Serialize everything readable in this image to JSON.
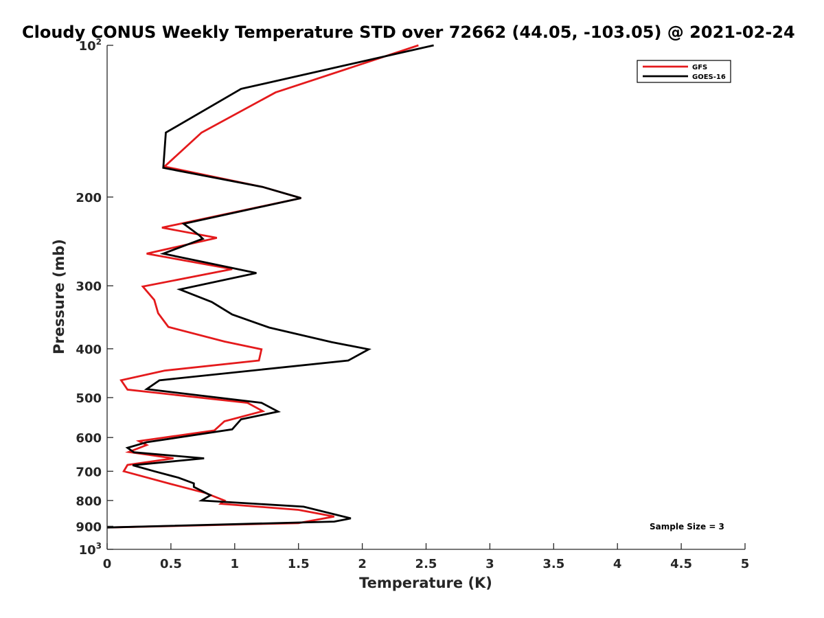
{
  "chart_data": {
    "type": "line",
    "title": "Cloudy CONUS Weekly Temperature STD over 72662 (44.05, -103.05) @ 2021-02-24",
    "xlabel": "Temperature (K)",
    "ylabel": "Pressure (mb)",
    "xlim": [
      0,
      5
    ],
    "ylim": [
      100,
      1000
    ],
    "y_scale": "log",
    "y_reversed": true,
    "x_ticks": [
      0,
      0.5,
      1,
      1.5,
      2,
      2.5,
      3,
      3.5,
      4,
      4.5,
      5
    ],
    "x_tick_labels": [
      "0",
      "0.5",
      "1",
      "1.5",
      "2",
      "2.5",
      "3",
      "3.5",
      "4",
      "4.5",
      "5"
    ],
    "y_ticks": [
      {
        "value": 100,
        "base": "10",
        "exp": "2"
      },
      {
        "value": 200,
        "label": "200"
      },
      {
        "value": 300,
        "label": "300"
      },
      {
        "value": 400,
        "label": "400"
      },
      {
        "value": 500,
        "label": "500"
      },
      {
        "value": 600,
        "label": "600"
      },
      {
        "value": 700,
        "label": "700"
      },
      {
        "value": 800,
        "label": "800"
      },
      {
        "value": 900,
        "label": "900"
      },
      {
        "value": 1000,
        "base": "10",
        "exp": "3"
      }
    ],
    "grid": false,
    "legend_position": "top-right",
    "annotation": "Sample Size = 3",
    "series": [
      {
        "name": "GFS",
        "color": "#e41a1c",
        "points": [
          [
            2.44,
            100
          ],
          [
            1.32,
            124
          ],
          [
            0.74,
            149
          ],
          [
            0.45,
            174
          ],
          [
            1.22,
            191
          ],
          [
            1.52,
            201
          ],
          [
            0.43,
            230
          ],
          [
            0.86,
            241
          ],
          [
            0.31,
            259
          ],
          [
            0.98,
            278
          ],
          [
            0.28,
            301
          ],
          [
            0.37,
            320
          ],
          [
            0.4,
            340
          ],
          [
            0.48,
            362
          ],
          [
            0.92,
            387
          ],
          [
            1.21,
            401
          ],
          [
            1.19,
            422
          ],
          [
            0.45,
            442
          ],
          [
            0.11,
            462
          ],
          [
            0.16,
            482
          ],
          [
            1.1,
            512
          ],
          [
            1.22,
            532
          ],
          [
            0.92,
            557
          ],
          [
            0.84,
            581
          ],
          [
            0.25,
            610
          ],
          [
            0.31,
            621
          ],
          [
            0.17,
            641
          ],
          [
            0.52,
            660
          ],
          [
            0.16,
            680
          ],
          [
            0.13,
            700
          ],
          [
            0.5,
            742
          ],
          [
            0.77,
            773
          ],
          [
            0.92,
            800
          ],
          [
            0.89,
            812
          ],
          [
            1.5,
            835
          ],
          [
            1.78,
            861
          ],
          [
            1.5,
            887
          ],
          [
            0.0,
            905
          ]
        ]
      },
      {
        "name": "GOES-16",
        "color": "#000000",
        "points": [
          [
            2.56,
            100
          ],
          [
            1.05,
            122
          ],
          [
            0.46,
            149
          ],
          [
            0.44,
            175
          ],
          [
            1.22,
            191
          ],
          [
            1.52,
            201
          ],
          [
            0.6,
            226
          ],
          [
            0.72,
            238
          ],
          [
            0.75,
            242
          ],
          [
            0.44,
            259
          ],
          [
            1.17,
            283
          ],
          [
            0.57,
            305
          ],
          [
            0.82,
            323
          ],
          [
            0.98,
            342
          ],
          [
            1.27,
            363
          ],
          [
            1.76,
            388
          ],
          [
            2.05,
            401
          ],
          [
            1.89,
            422
          ],
          [
            0.41,
            462
          ],
          [
            0.31,
            481
          ],
          [
            1.21,
            512
          ],
          [
            1.34,
            533
          ],
          [
            1.05,
            552
          ],
          [
            0.98,
            578
          ],
          [
            0.31,
            613
          ],
          [
            0.16,
            629
          ],
          [
            0.21,
            642
          ],
          [
            0.76,
            660
          ],
          [
            0.2,
            681
          ],
          [
            0.37,
            700
          ],
          [
            0.56,
            721
          ],
          [
            0.68,
            740
          ],
          [
            0.68,
            752
          ],
          [
            0.81,
            781
          ],
          [
            0.74,
            800
          ],
          [
            1.54,
            823
          ],
          [
            1.91,
            868
          ],
          [
            1.78,
            881
          ],
          [
            0.0,
            905
          ]
        ]
      }
    ]
  }
}
